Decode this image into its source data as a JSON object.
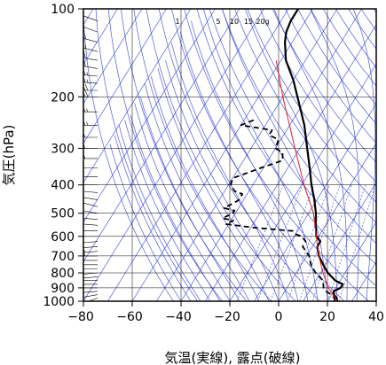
{
  "chart_data": {
    "type": "line",
    "diagram": "skew-T log-p",
    "xlabel": "気温(実線), 露点(破線)",
    "ylabel": "気圧(hPa)",
    "xlim": [
      -80,
      40
    ],
    "ylim": [
      1000,
      100
    ],
    "y_scale": "log",
    "x_ticks": [
      -80,
      -60,
      -40,
      -20,
      0,
      20,
      40
    ],
    "y_ticks": [
      100,
      200,
      300,
      400,
      500,
      600,
      700,
      800,
      900,
      1000
    ],
    "skew_per_log10_pressure": 74,
    "grid": true,
    "mixing_ratio_labels": [
      "1",
      "5",
      "10",
      "15",
      "20g"
    ],
    "colors": {
      "temperature": "#000000",
      "dewpoint": "#000000",
      "parcel": "#dd2222",
      "background_lines": "#3340dd",
      "grid": "#000000"
    },
    "series": [
      {
        "style": "solid",
        "points": [
          [
            1000,
            24
          ],
          [
            975,
            23
          ],
          [
            950,
            21
          ],
          [
            925,
            20
          ],
          [
            900,
            22
          ],
          [
            875,
            22
          ],
          [
            850,
            18
          ],
          [
            800,
            13
          ],
          [
            750,
            9
          ],
          [
            700,
            5
          ],
          [
            650,
            2
          ],
          [
            625,
            2
          ],
          [
            600,
            -1
          ],
          [
            550,
            -4
          ],
          [
            500,
            -7
          ],
          [
            450,
            -11
          ],
          [
            400,
            -16
          ],
          [
            350,
            -21
          ],
          [
            300,
            -27
          ],
          [
            250,
            -34
          ],
          [
            200,
            -44
          ],
          [
            175,
            -50
          ],
          [
            150,
            -58
          ],
          [
            130,
            -63
          ],
          [
            120,
            -65
          ],
          [
            110,
            -66
          ],
          [
            100,
            -66
          ]
        ]
      },
      {
        "style": "dashed",
        "points": [
          [
            1000,
            23
          ],
          [
            975,
            22
          ],
          [
            950,
            20
          ],
          [
            925,
            17
          ],
          [
            900,
            15
          ],
          [
            850,
            13
          ],
          [
            800,
            8
          ],
          [
            750,
            4
          ],
          [
            700,
            1
          ],
          [
            650,
            -4
          ],
          [
            625,
            -4
          ],
          [
            600,
            -7
          ],
          [
            590,
            -10
          ],
          [
            575,
            -12
          ],
          [
            560,
            -29
          ],
          [
            545,
            -41
          ],
          [
            530,
            -39
          ],
          [
            520,
            -44
          ],
          [
            500,
            -41
          ],
          [
            490,
            -41
          ],
          [
            480,
            -46
          ],
          [
            460,
            -43
          ],
          [
            450,
            -42
          ],
          [
            430,
            -42
          ],
          [
            420,
            -46
          ],
          [
            400,
            -49
          ],
          [
            380,
            -50
          ],
          [
            350,
            -41
          ],
          [
            330,
            -34
          ],
          [
            310,
            -36
          ],
          [
            300,
            -40
          ],
          [
            280,
            -41
          ],
          [
            270,
            -46
          ],
          [
            260,
            -46
          ],
          [
            250,
            -60
          ],
          [
            240,
            -56
          ]
        ]
      },
      {
        "style": "solid",
        "points": [
          [
            1000,
            24
          ],
          [
            900,
            17
          ],
          [
            800,
            11
          ],
          [
            700,
            5
          ],
          [
            600,
            -1
          ],
          [
            500,
            -8
          ],
          [
            400,
            -19
          ],
          [
            300,
            -32
          ],
          [
            200,
            -50
          ],
          [
            150,
            -62
          ]
        ]
      }
    ],
    "wind_barbs": {
      "levels": [
        1000,
        975,
        950,
        925,
        900,
        875,
        850,
        825,
        800,
        775,
        750,
        725,
        700,
        675,
        650,
        625,
        600,
        575,
        550,
        525,
        500,
        475,
        450,
        425,
        400,
        375,
        350,
        325,
        300,
        275,
        250,
        225,
        200,
        190,
        180,
        170,
        160,
        150,
        140,
        130,
        120,
        110,
        100
      ],
      "speed_kt": [
        5,
        10,
        10,
        15,
        15,
        15,
        15,
        20,
        20,
        20,
        20,
        20,
        25,
        25,
        20,
        20,
        20,
        20,
        15,
        15,
        10,
        10,
        10,
        10,
        10,
        15,
        20,
        25,
        30,
        30,
        35,
        35,
        40,
        40,
        35,
        35,
        30,
        30,
        25,
        25,
        20,
        20,
        20
      ],
      "direction_deg": [
        230,
        250,
        260,
        265,
        270,
        270,
        270,
        265,
        265,
        270,
        270,
        270,
        270,
        265,
        265,
        265,
        270,
        270,
        275,
        275,
        280,
        285,
        280,
        275,
        270,
        270,
        270,
        270,
        270,
        270,
        270,
        270,
        270,
        270,
        275,
        275,
        280,
        280,
        285,
        285,
        290,
        290,
        290
      ]
    }
  }
}
